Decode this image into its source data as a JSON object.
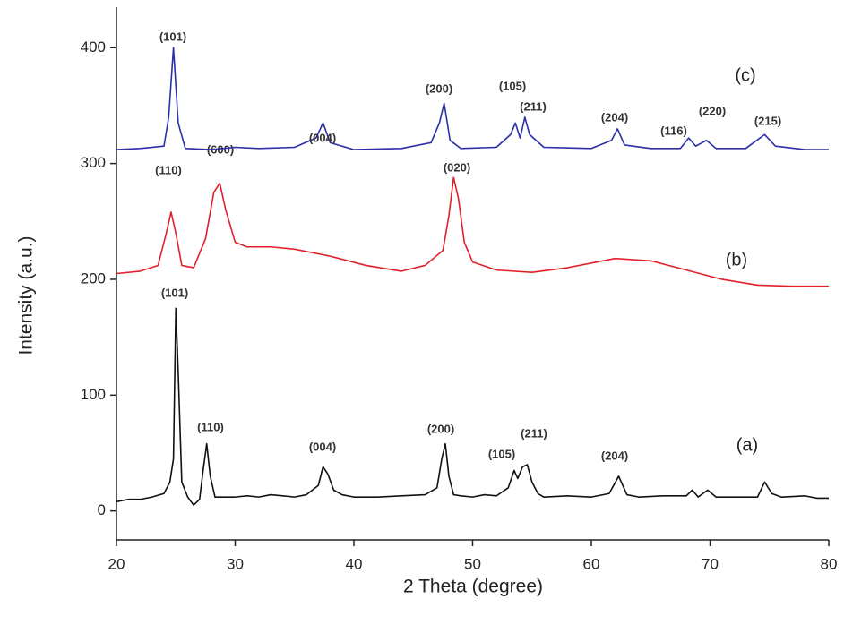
{
  "chart_data": {
    "type": "line",
    "xlabel": "2 Theta (degree)",
    "ylabel": "Intensity (a.u.)",
    "xlim": [
      20,
      80
    ],
    "xticks": [
      20,
      30,
      40,
      50,
      60,
      70,
      80
    ],
    "ylim": [
      -25,
      435
    ],
    "yticks": [
      0,
      100,
      200,
      300,
      400
    ],
    "grid": false,
    "series": [
      {
        "name": "(a)",
        "color": "#111111",
        "x": [
          20,
          21,
          22,
          23,
          24,
          24.5,
          24.8,
          25.0,
          25.2,
          25.5,
          26,
          26.5,
          27,
          27.3,
          27.6,
          27.9,
          28.3,
          29,
          30,
          31,
          32,
          33,
          34,
          35,
          36,
          37,
          37.4,
          37.8,
          38.3,
          39,
          40,
          42,
          44,
          46,
          47,
          47.4,
          47.7,
          48,
          48.4,
          49,
          50,
          51,
          52,
          53,
          53.5,
          53.8,
          54.2,
          54.6,
          55,
          55.5,
          56,
          58,
          60,
          61.5,
          62.3,
          63,
          64,
          66,
          68,
          68.5,
          69,
          69.8,
          70.5,
          72,
          74,
          74.6,
          75.2,
          76,
          78,
          79,
          80
        ],
        "values": [
          8,
          10,
          10,
          12,
          15,
          25,
          45,
          175,
          120,
          25,
          12,
          5,
          10,
          35,
          58,
          30,
          12,
          12,
          12,
          13,
          12,
          14,
          13,
          12,
          14,
          22,
          38,
          32,
          18,
          14,
          12,
          12,
          13,
          14,
          20,
          45,
          58,
          30,
          14,
          13,
          12,
          14,
          13,
          20,
          35,
          28,
          38,
          40,
          25,
          15,
          12,
          13,
          12,
          15,
          30,
          14,
          12,
          13,
          13,
          18,
          12,
          18,
          12,
          12,
          12,
          25,
          15,
          12,
          13,
          11,
          11
        ],
        "annotations": [
          "(101)",
          "(110)",
          "(004)",
          "(200)",
          "(105)",
          "(211)",
          "(204)"
        ]
      },
      {
        "name": "(b)",
        "color": "#e0212b",
        "x": [
          20,
          22,
          23.5,
          24.2,
          24.6,
          25,
          25.5,
          26.5,
          27.5,
          28.2,
          28.7,
          29.2,
          30,
          31,
          33,
          35,
          38,
          41,
          44,
          46,
          47.5,
          48,
          48.4,
          48.8,
          49.3,
          50,
          52,
          55,
          58,
          62,
          65,
          68,
          71,
          74,
          77,
          80
        ],
        "values": [
          205,
          207,
          212,
          240,
          258,
          240,
          212,
          210,
          235,
          275,
          283,
          260,
          232,
          228,
          228,
          226,
          220,
          212,
          207,
          212,
          225,
          255,
          288,
          270,
          232,
          215,
          208,
          206,
          210,
          218,
          216,
          208,
          200,
          195,
          194,
          194
        ],
        "annotations": [
          "(110)",
          "(600)",
          "(020)"
        ]
      },
      {
        "name": "(c)",
        "color": "#2b2fa8",
        "x": [
          20,
          22,
          24,
          24.4,
          24.8,
          25.2,
          25.8,
          28,
          30,
          32,
          35,
          36.8,
          37.4,
          38,
          40,
          44,
          46.5,
          47.2,
          47.6,
          48.1,
          49,
          52,
          53.2,
          53.6,
          54,
          54.4,
          54.8,
          56,
          60,
          61.7,
          62.2,
          62.8,
          65,
          67.5,
          68.2,
          68.8,
          69.7,
          70.5,
          73,
          74.6,
          75.5,
          78,
          80
        ],
        "values": [
          312,
          313,
          315,
          340,
          400,
          335,
          313,
          312,
          314,
          313,
          314,
          322,
          335,
          318,
          312,
          313,
          318,
          335,
          352,
          320,
          313,
          314,
          325,
          335,
          322,
          340,
          325,
          314,
          313,
          320,
          330,
          316,
          313,
          313,
          322,
          315,
          320,
          313,
          313,
          325,
          315,
          312,
          312
        ],
        "annotations": [
          "(101)",
          "(004)",
          "(200)",
          "(105)",
          "(211)",
          "(204)",
          "(116)",
          "(220)",
          "(215)"
        ]
      }
    ]
  }
}
